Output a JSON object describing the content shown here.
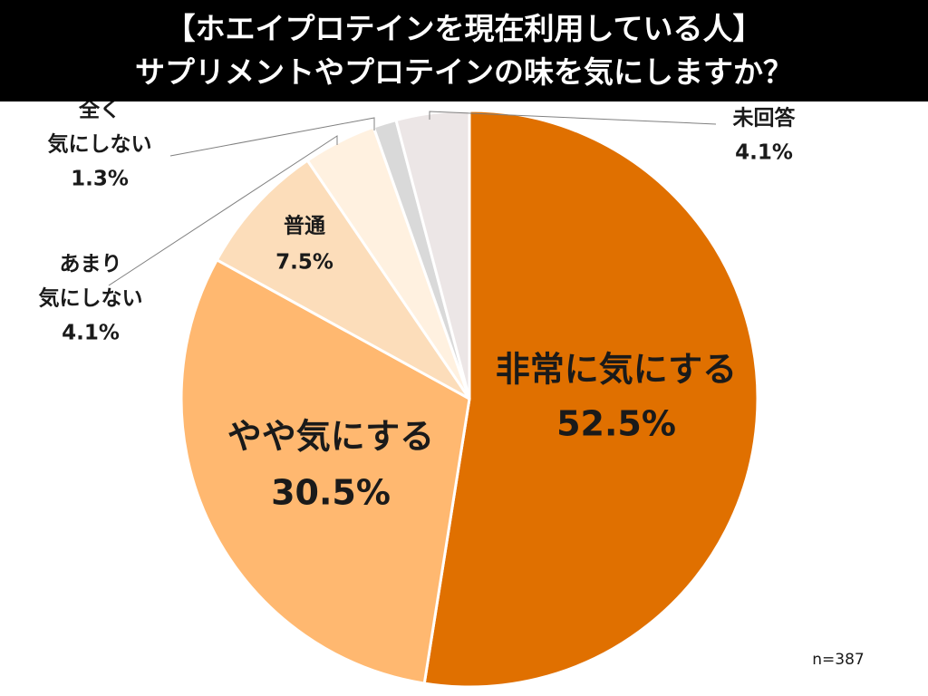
{
  "header": {
    "title_line1": "【ホエイプロテインを現在利用している人】",
    "title_line2": "サプリメントやプロテインの味を気にしますか？"
  },
  "sample_note": "n=387",
  "chart_data": {
    "type": "pie",
    "title": "【ホエイプロテインを現在利用している人】サプリメントやプロテインの味を気にしますか？",
    "start": "12 o'clock, clockwise",
    "series": [
      {
        "label_lines": [
          "非常に気にする"
        ],
        "value": 52.5,
        "value_label": "52.5%",
        "color": "#E07000",
        "label_color": "#1a1a1a",
        "label_style": "inside-large"
      },
      {
        "label_lines": [
          "やや気にする"
        ],
        "value": 30.5,
        "value_label": "30.5%",
        "color": "#FFB870",
        "label_color": "#1a1a1a",
        "label_style": "inside-large"
      },
      {
        "label_lines": [
          "普通"
        ],
        "value": 7.5,
        "value_label": "7.5%",
        "color": "#FCDDBA",
        "label_color": "#1a1a1a",
        "label_style": "inside-small"
      },
      {
        "label_lines": [
          "あまり",
          "気にしない"
        ],
        "value": 4.1,
        "value_label": "4.1%",
        "color": "#FFF1E0",
        "label_color": "#1a1a1a",
        "label_style": "outside-left"
      },
      {
        "label_lines": [
          "全く",
          "気にしない"
        ],
        "value": 1.3,
        "value_label": "1.3%",
        "color": "#D9D9D9",
        "label_color": "#1a1a1a",
        "label_style": "outside-left"
      },
      {
        "label_lines": [
          "未回答"
        ],
        "value": 4.1,
        "value_label": "4.1%",
        "color": "#ECE6E6",
        "label_color": "#1a1a1a",
        "label_style": "outside-right"
      }
    ]
  }
}
